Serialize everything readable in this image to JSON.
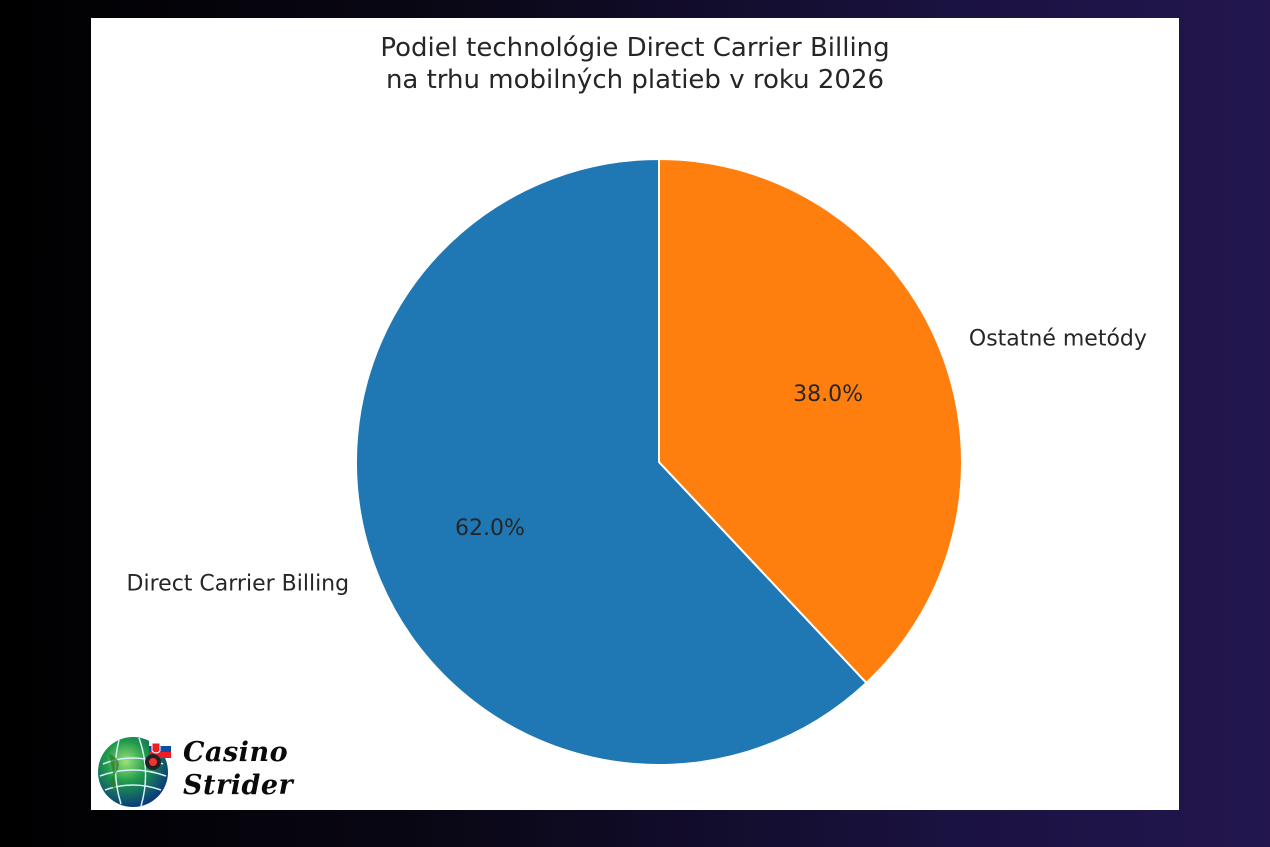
{
  "chart_data": {
    "type": "pie",
    "title_lines": [
      "Podiel technológie Direct Carrier Billing",
      "na trhu mobilných platieb v roku 2026"
    ],
    "categories": [
      "Direct Carrier Billing",
      "Ostatné metódy"
    ],
    "values": [
      62.0,
      38.0
    ],
    "value_labels": [
      "62.0%",
      "38.0%"
    ],
    "colors": [
      "#1f77b4",
      "#ff7f0e"
    ],
    "start_angle": "top (12 o'clock)",
    "direction": "counterclockwise",
    "legend": "none"
  },
  "logo": {
    "line1": "Casino",
    "line2": "Strider",
    "icon": "globe-with-slovak-flag-icon"
  }
}
